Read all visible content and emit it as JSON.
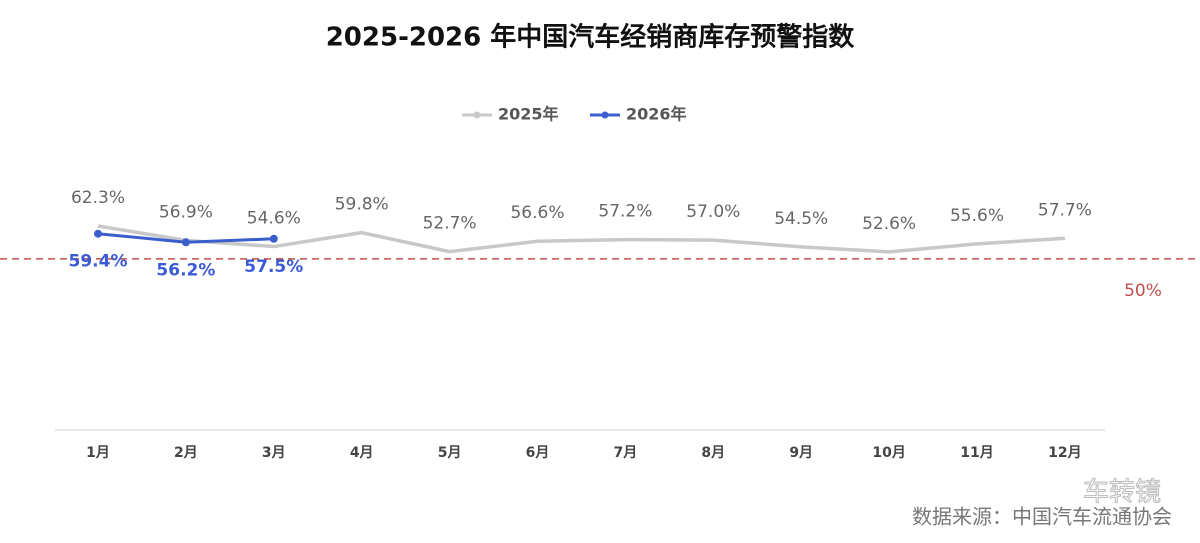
{
  "chart_data": {
    "type": "line",
    "title": "2025-2026 年中国汽车经销商库存预警指数",
    "categories": [
      "1月",
      "2月",
      "3月",
      "4月",
      "5月",
      "6月",
      "7月",
      "8月",
      "9月",
      "10月",
      "11月",
      "12月"
    ],
    "series": [
      {
        "name": "2025年",
        "color": "#c8c8c8",
        "label_color": "#666666",
        "values": [
          62.3,
          56.9,
          54.6,
          59.8,
          52.7,
          56.6,
          57.2,
          57.0,
          54.5,
          52.6,
          55.6,
          57.7
        ],
        "value_labels": [
          "62.3%",
          "56.9%",
          "54.6%",
          "59.8%",
          "52.7%",
          "56.6%",
          "57.2%",
          "57.0%",
          "54.5%",
          "52.6%",
          "55.6%",
          "57.7%"
        ]
      },
      {
        "name": "2026年",
        "color": "#3a5fcd",
        "label_color": "#3b5bd6",
        "values": [
          59.4,
          56.2,
          57.5,
          null,
          null,
          null,
          null,
          null,
          null,
          null,
          null,
          null
        ],
        "value_labels": [
          "59.4%",
          "56.2%",
          "57.5%",
          null,
          null,
          null,
          null,
          null,
          null,
          null,
          null,
          null
        ]
      }
    ],
    "ylim": [
      -14,
      75
    ],
    "reference_line": {
      "value": 50,
      "label": "50%",
      "color": "#c0504d"
    },
    "source": "数据来源：中国汽车流通协会",
    "watermark": "车转镜"
  }
}
